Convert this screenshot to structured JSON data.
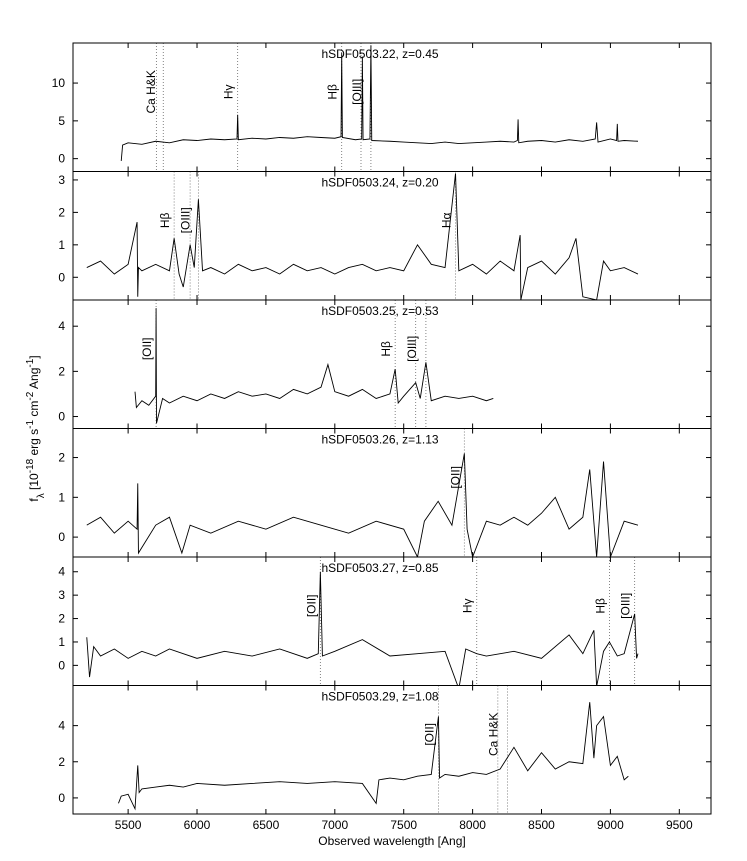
{
  "chart_data": [
    {
      "type": "line",
      "title": "hSDF0503.22, z=0.45",
      "ylabel": [
        [
          "f",
          "normal"
        ],
        [
          "λ",
          "sub"
        ],
        [
          " [10",
          "normal"
        ],
        [
          "-18",
          "sup"
        ],
        [
          " erg s",
          "normal"
        ],
        [
          "-1",
          "sup"
        ],
        [
          " cm",
          "normal"
        ],
        [
          "-2",
          "sup"
        ],
        [
          " Ang",
          "normal"
        ],
        [
          "-1",
          "sup"
        ],
        [
          "]",
          "normal"
        ]
      ],
      "xlim": [
        5100,
        9730
      ],
      "xticks": [
        5500,
        6000,
        6500,
        7000,
        7500,
        8000,
        8500,
        9000,
        9500
      ],
      "ylim": [
        -1.7,
        15.3
      ],
      "yticks": [
        0,
        5,
        10
      ],
      "color": "#000000",
      "x": [
        5450,
        5460,
        5500,
        5600,
        5700,
        5800,
        5900,
        6000,
        6100,
        6200,
        6290,
        6295,
        6300,
        6400,
        6500,
        6600,
        6700,
        6800,
        6900,
        7000,
        7045,
        7050,
        7055,
        7150,
        7195,
        7200,
        7205,
        7255,
        7262,
        7268,
        7400,
        7500,
        7600,
        7700,
        7800,
        7900,
        8000,
        8100,
        8200,
        8300,
        8325,
        8330,
        8335,
        8400,
        8500,
        8600,
        8700,
        8800,
        8890,
        8900,
        8910,
        9000,
        9045,
        9050,
        9055,
        9100,
        9200
      ],
      "values": [
        -0.3,
        1.8,
        2.1,
        1.9,
        2.3,
        2.1,
        2.5,
        2.4,
        2.6,
        2.5,
        2.6,
        5.8,
        2.5,
        2.7,
        2.6,
        2.8,
        2.7,
        2.9,
        2.8,
        2.7,
        2.9,
        14,
        2.8,
        2.5,
        2.6,
        13.5,
        2.5,
        2.6,
        15,
        2.4,
        2.3,
        2.2,
        2.1,
        2.0,
        2.2,
        2.0,
        2.1,
        2.2,
        2.3,
        2.2,
        2.4,
        5.2,
        2.1,
        2.3,
        2.4,
        2.2,
        2.5,
        2.3,
        2.6,
        4.8,
        2.2,
        2.6,
        2.4,
        4.6,
        2.3,
        2.4,
        2.3
      ],
      "annotations": [
        {
          "label": "Ca H&K",
          "x": [
            5705,
            5755
          ]
        },
        {
          "label": "Hγ",
          "x": [
            6295
          ]
        },
        {
          "label": "Hβ",
          "x": [
            7050
          ]
        },
        {
          "label": "[OIII]",
          "x": [
            7190,
            7262
          ]
        }
      ]
    },
    {
      "type": "line",
      "title": "hSDF0503.24, z=0.20",
      "xlim": [
        5100,
        9730
      ],
      "xticks": [
        5500,
        6000,
        6500,
        7000,
        7500,
        8000,
        8500,
        9000,
        9500
      ],
      "ylim": [
        -0.7,
        3.26
      ],
      "yticks": [
        0,
        1,
        2,
        3
      ],
      "color": "#000000",
      "x": [
        5200,
        5300,
        5400,
        5500,
        5565,
        5570,
        5575,
        5600,
        5700,
        5800,
        5834,
        5870,
        5900,
        5950,
        5980,
        6010,
        6040,
        6100,
        6200,
        6300,
        6400,
        6500,
        6600,
        6700,
        6800,
        6900,
        7000,
        7100,
        7200,
        7300,
        7400,
        7500,
        7600,
        7700,
        7800,
        7876,
        7900,
        8000,
        8100,
        8200,
        8300,
        8345,
        8350,
        8400,
        8500,
        8600,
        8700,
        8750,
        8800,
        8900,
        8950,
        9000,
        9100,
        9200
      ],
      "values": [
        0.3,
        0.5,
        0.1,
        0.4,
        1.7,
        -0.6,
        0.3,
        0.2,
        0.4,
        0.2,
        1.2,
        0.1,
        -0.3,
        1.0,
        0.3,
        2.4,
        0.2,
        0.3,
        0.1,
        0.4,
        0.2,
        0.3,
        0.1,
        0.4,
        0.2,
        0.3,
        0.1,
        0.3,
        0.4,
        0.2,
        0.3,
        0.2,
        1.0,
        0.4,
        0.3,
        3.2,
        0.2,
        0.4,
        0.1,
        0.5,
        0.2,
        1.3,
        -0.7,
        0.3,
        0.5,
        0.1,
        0.6,
        1.2,
        -0.6,
        -0.7,
        0.5,
        0.2,
        0.3,
        0.1
      ],
      "annotations": [
        {
          "label": "Hβ",
          "x": [
            5834
          ]
        },
        {
          "label": "[OIII]",
          "x": [
            5950,
            6010
          ]
        },
        {
          "label": "Hα",
          "x": [
            7876
          ]
        }
      ]
    },
    {
      "type": "line",
      "title": "hSDF0503.25, z=0.53",
      "xlim": [
        5100,
        9730
      ],
      "xticks": [
        5500,
        6000,
        6500,
        7000,
        7500,
        8000,
        8500,
        9000,
        9500
      ],
      "ylim": [
        -0.53,
        5.16
      ],
      "yticks": [
        0,
        2,
        4
      ],
      "color": "#000000",
      "x": [
        5550,
        5560,
        5600,
        5650,
        5700,
        5703,
        5706,
        5750,
        5800,
        5900,
        6000,
        6100,
        6200,
        6300,
        6400,
        6500,
        6600,
        6700,
        6800,
        6900,
        6950,
        7000,
        7100,
        7200,
        7300,
        7400,
        7438,
        7460,
        7500,
        7587,
        7620,
        7661,
        7700,
        7800,
        7900,
        8000,
        8100,
        8150
      ],
      "values": [
        1.1,
        0.4,
        0.7,
        0.5,
        0.9,
        4.8,
        -0.3,
        0.8,
        0.6,
        0.9,
        0.7,
        1.0,
        0.8,
        1.1,
        0.9,
        1.0,
        0.8,
        1.2,
        1.0,
        1.3,
        2.3,
        1.1,
        0.9,
        1.2,
        0.8,
        1.0,
        2.1,
        0.6,
        0.9,
        1.5,
        0.8,
        2.4,
        0.7,
        0.9,
        0.8,
        0.9,
        0.7,
        0.8
      ],
      "annotations": [
        {
          "label": "[OII]",
          "x": [
            5703
          ]
        },
        {
          "label": "Hβ",
          "x": [
            7438
          ]
        },
        {
          "label": "[OIII]",
          "x": [
            7587,
            7661
          ]
        }
      ]
    },
    {
      "type": "line",
      "title": "hSDF0503.26, z=1.13",
      "xlim": [
        5100,
        9730
      ],
      "xticks": [
        5500,
        6000,
        6500,
        7000,
        7500,
        8000,
        8500,
        9000,
        9500
      ],
      "ylim": [
        -0.5,
        2.73
      ],
      "yticks": [
        0,
        1,
        2
      ],
      "color": "#000000",
      "x": [
        5200,
        5300,
        5400,
        5500,
        5565,
        5570,
        5575,
        5700,
        5800,
        5890,
        5950,
        6100,
        6300,
        6500,
        6700,
        6900,
        7100,
        7300,
        7500,
        7600,
        7650,
        7750,
        7850,
        7940,
        7960,
        8000,
        8100,
        8200,
        8300,
        8400,
        8500,
        8600,
        8700,
        8800,
        8850,
        8900,
        8950,
        9000,
        9100,
        9200
      ],
      "values": [
        0.3,
        0.5,
        0.1,
        0.4,
        0.2,
        1.35,
        -0.4,
        0.3,
        0.5,
        -0.4,
        0.3,
        0.1,
        0.4,
        0.2,
        0.5,
        0.3,
        0.1,
        0.4,
        0.2,
        -0.5,
        0.4,
        0.9,
        0.3,
        2.1,
        0.2,
        -0.5,
        0.4,
        0.3,
        0.5,
        0.3,
        0.6,
        1.0,
        0.2,
        0.5,
        1.7,
        -0.5,
        1.9,
        -0.5,
        0.4,
        0.3
      ],
      "annotations": [
        {
          "label": "[OII]",
          "x": [
            7940
          ]
        }
      ]
    },
    {
      "type": "line",
      "title": "hSDF0503.27, z=0.85",
      "xlim": [
        5100,
        9730
      ],
      "xticks": [
        5500,
        6000,
        6500,
        7000,
        7500,
        8000,
        8500,
        9000,
        9500
      ],
      "ylim": [
        -0.86,
        4.63
      ],
      "yticks": [
        0,
        1,
        2,
        3,
        4
      ],
      "color": "#000000",
      "x": [
        5200,
        5220,
        5250,
        5300,
        5400,
        5500,
        5600,
        5700,
        5800,
        5900,
        6000,
        6200,
        6400,
        6600,
        6800,
        6880,
        6895,
        6910,
        7000,
        7200,
        7400,
        7600,
        7800,
        7900,
        7950,
        8030,
        8100,
        8300,
        8500,
        8700,
        8800,
        8880,
        8900,
        8950,
        8993,
        9050,
        9100,
        9176,
        9190,
        9200
      ],
      "values": [
        1.2,
        -0.5,
        0.8,
        0.4,
        0.7,
        0.3,
        0.6,
        0.4,
        0.7,
        0.5,
        0.3,
        0.6,
        0.4,
        0.7,
        0.3,
        0.5,
        4.0,
        0.4,
        0.6,
        1.1,
        0.4,
        0.5,
        0.6,
        -1.0,
        0.7,
        0.5,
        0.4,
        0.6,
        0.3,
        1.3,
        0.5,
        1.5,
        -0.9,
        0.6,
        1.0,
        0.4,
        0.5,
        2.2,
        0.3,
        0.5
      ],
      "annotations": [
        {
          "label": "[OII]",
          "x": [
            6895
          ]
        },
        {
          "label": "Hγ",
          "x": [
            8030
          ]
        },
        {
          "label": "Hβ",
          "x": [
            8993
          ]
        },
        {
          "label": "[OIII]",
          "x": [
            9176
          ]
        }
      ]
    },
    {
      "type": "line",
      "title": "hSDF0503.29, z=1.08",
      "xlabel": "Observed wavelength [Ang]",
      "xlim": [
        5100,
        9730
      ],
      "xticks": [
        5500,
        6000,
        6500,
        7000,
        7500,
        8000,
        8500,
        9000,
        9500
      ],
      "ylim": [
        -0.89,
        6.22
      ],
      "yticks": [
        0,
        2,
        4
      ],
      "color": "#000000",
      "x": [
        5430,
        5450,
        5500,
        5550,
        5570,
        5580,
        5600,
        5700,
        5800,
        5900,
        6000,
        6200,
        6400,
        6600,
        6800,
        7000,
        7200,
        7300,
        7320,
        7400,
        7500,
        7600,
        7700,
        7752,
        7760,
        7800,
        7900,
        8000,
        8100,
        8200,
        8300,
        8400,
        8500,
        8600,
        8700,
        8800,
        8850,
        8880,
        8900,
        8950,
        9000,
        9050,
        9100,
        9130
      ],
      "values": [
        -0.3,
        0.1,
        0.2,
        -0.6,
        1.8,
        0.3,
        0.5,
        0.6,
        0.7,
        0.6,
        0.8,
        0.7,
        0.8,
        0.9,
        0.8,
        0.9,
        0.8,
        -0.3,
        1.0,
        1.1,
        1.0,
        1.2,
        1.3,
        4.5,
        1.1,
        1.3,
        1.2,
        1.4,
        1.3,
        1.6,
        2.8,
        1.5,
        2.5,
        1.6,
        2.0,
        1.9,
        5.3,
        2.2,
        4.0,
        4.5,
        1.8,
        2.3,
        1.0,
        1.2
      ],
      "annotations": [
        {
          "label": "[OII]",
          "x": [
            7752
          ]
        },
        {
          "label": "Ca H&K",
          "x": [
            8183,
            8253
          ]
        }
      ]
    }
  ]
}
